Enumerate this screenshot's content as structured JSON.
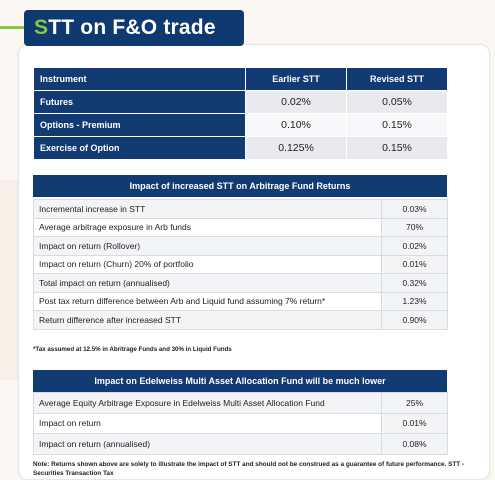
{
  "title": {
    "first_letter": "S",
    "rest": "TT on F&O trade"
  },
  "colors": {
    "navy": "#123b73",
    "accent_green": "#8dc63f"
  },
  "table1": {
    "headers": [
      "Instrument",
      "Earlier STT",
      "Revised STT"
    ],
    "rows": [
      {
        "instrument": "Futures",
        "earlier": "0.02%",
        "revised": "0.05%"
      },
      {
        "instrument": "Options - Premium",
        "earlier": "0.10%",
        "revised": "0.15%"
      },
      {
        "instrument": "Exercise of Option",
        "earlier": "0.125%",
        "revised": "0.15%"
      }
    ]
  },
  "table2": {
    "title": "Impact of increased STT on Arbitrage Fund Returns",
    "rows": [
      {
        "label": "Incremental increase in STT",
        "value": "0.03%"
      },
      {
        "label": "Average arbitrage exposure in Arb funds",
        "value": "70%"
      },
      {
        "label": "Impact on return (Rollover)",
        "value": "0.02%"
      },
      {
        "label": "Impact on return (Churn) 20% of portfolio",
        "value": "0.01%"
      },
      {
        "label": "Total impact on return (annualised)",
        "value": "0.32%"
      },
      {
        "label": "Post tax return difference between Arb and Liquid fund assuming 7% return*",
        "value": "1.23%"
      },
      {
        "label": "Return difference after increased STT",
        "value": "0.90%"
      }
    ],
    "footnote": "*Tax assumed at 12.5% in Abritrage Funds and 30% in Liquid Funds"
  },
  "table3": {
    "title": "Impact on Edelweiss Multi Asset Allocation Fund will be much lower",
    "rows": [
      {
        "label": "Average Equity Arbitrage Exposure in Edelweiss Multi Asset Allocation Fund",
        "value": "25%"
      },
      {
        "label": "Impact on return",
        "value": "0.01%"
      },
      {
        "label": "Impact on return (annualised)",
        "value": "0.08%"
      }
    ]
  },
  "note": "Note: Returns shown above are solely to illustrate the impact of STT and should not be construed as a guarantee of future performance. STT - Securities Transaction Tax"
}
